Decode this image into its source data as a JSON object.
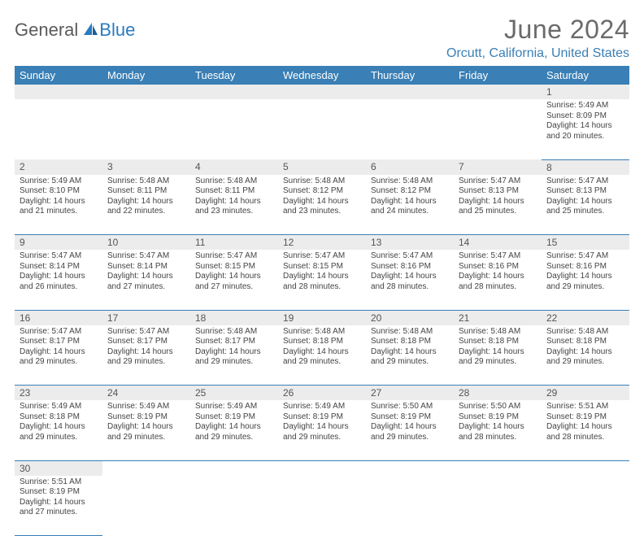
{
  "logo": {
    "text1": "General",
    "text2": "Blue"
  },
  "title": "June 2024",
  "location": "Orcutt, California, United States",
  "colors": {
    "header_bg": "#3a7fb5",
    "header_fg": "#ffffff",
    "daynum_bg": "#ececec",
    "accent": "#2b7bbf",
    "text": "#444444"
  },
  "days_of_week": [
    "Sunday",
    "Monday",
    "Tuesday",
    "Wednesday",
    "Thursday",
    "Friday",
    "Saturday"
  ],
  "weeks": [
    [
      null,
      null,
      null,
      null,
      null,
      null,
      {
        "n": "1",
        "sr": "Sunrise: 5:49 AM",
        "ss": "Sunset: 8:09 PM",
        "d1": "Daylight: 14 hours",
        "d2": "and 20 minutes."
      }
    ],
    [
      {
        "n": "2",
        "sr": "Sunrise: 5:49 AM",
        "ss": "Sunset: 8:10 PM",
        "d1": "Daylight: 14 hours",
        "d2": "and 21 minutes."
      },
      {
        "n": "3",
        "sr": "Sunrise: 5:48 AM",
        "ss": "Sunset: 8:11 PM",
        "d1": "Daylight: 14 hours",
        "d2": "and 22 minutes."
      },
      {
        "n": "4",
        "sr": "Sunrise: 5:48 AM",
        "ss": "Sunset: 8:11 PM",
        "d1": "Daylight: 14 hours",
        "d2": "and 23 minutes."
      },
      {
        "n": "5",
        "sr": "Sunrise: 5:48 AM",
        "ss": "Sunset: 8:12 PM",
        "d1": "Daylight: 14 hours",
        "d2": "and 23 minutes."
      },
      {
        "n": "6",
        "sr": "Sunrise: 5:48 AM",
        "ss": "Sunset: 8:12 PM",
        "d1": "Daylight: 14 hours",
        "d2": "and 24 minutes."
      },
      {
        "n": "7",
        "sr": "Sunrise: 5:47 AM",
        "ss": "Sunset: 8:13 PM",
        "d1": "Daylight: 14 hours",
        "d2": "and 25 minutes."
      },
      {
        "n": "8",
        "sr": "Sunrise: 5:47 AM",
        "ss": "Sunset: 8:13 PM",
        "d1": "Daylight: 14 hours",
        "d2": "and 25 minutes."
      }
    ],
    [
      {
        "n": "9",
        "sr": "Sunrise: 5:47 AM",
        "ss": "Sunset: 8:14 PM",
        "d1": "Daylight: 14 hours",
        "d2": "and 26 minutes."
      },
      {
        "n": "10",
        "sr": "Sunrise: 5:47 AM",
        "ss": "Sunset: 8:14 PM",
        "d1": "Daylight: 14 hours",
        "d2": "and 27 minutes."
      },
      {
        "n": "11",
        "sr": "Sunrise: 5:47 AM",
        "ss": "Sunset: 8:15 PM",
        "d1": "Daylight: 14 hours",
        "d2": "and 27 minutes."
      },
      {
        "n": "12",
        "sr": "Sunrise: 5:47 AM",
        "ss": "Sunset: 8:15 PM",
        "d1": "Daylight: 14 hours",
        "d2": "and 28 minutes."
      },
      {
        "n": "13",
        "sr": "Sunrise: 5:47 AM",
        "ss": "Sunset: 8:16 PM",
        "d1": "Daylight: 14 hours",
        "d2": "and 28 minutes."
      },
      {
        "n": "14",
        "sr": "Sunrise: 5:47 AM",
        "ss": "Sunset: 8:16 PM",
        "d1": "Daylight: 14 hours",
        "d2": "and 28 minutes."
      },
      {
        "n": "15",
        "sr": "Sunrise: 5:47 AM",
        "ss": "Sunset: 8:16 PM",
        "d1": "Daylight: 14 hours",
        "d2": "and 29 minutes."
      }
    ],
    [
      {
        "n": "16",
        "sr": "Sunrise: 5:47 AM",
        "ss": "Sunset: 8:17 PM",
        "d1": "Daylight: 14 hours",
        "d2": "and 29 minutes."
      },
      {
        "n": "17",
        "sr": "Sunrise: 5:47 AM",
        "ss": "Sunset: 8:17 PM",
        "d1": "Daylight: 14 hours",
        "d2": "and 29 minutes."
      },
      {
        "n": "18",
        "sr": "Sunrise: 5:48 AM",
        "ss": "Sunset: 8:17 PM",
        "d1": "Daylight: 14 hours",
        "d2": "and 29 minutes."
      },
      {
        "n": "19",
        "sr": "Sunrise: 5:48 AM",
        "ss": "Sunset: 8:18 PM",
        "d1": "Daylight: 14 hours",
        "d2": "and 29 minutes."
      },
      {
        "n": "20",
        "sr": "Sunrise: 5:48 AM",
        "ss": "Sunset: 8:18 PM",
        "d1": "Daylight: 14 hours",
        "d2": "and 29 minutes."
      },
      {
        "n": "21",
        "sr": "Sunrise: 5:48 AM",
        "ss": "Sunset: 8:18 PM",
        "d1": "Daylight: 14 hours",
        "d2": "and 29 minutes."
      },
      {
        "n": "22",
        "sr": "Sunrise: 5:48 AM",
        "ss": "Sunset: 8:18 PM",
        "d1": "Daylight: 14 hours",
        "d2": "and 29 minutes."
      }
    ],
    [
      {
        "n": "23",
        "sr": "Sunrise: 5:49 AM",
        "ss": "Sunset: 8:18 PM",
        "d1": "Daylight: 14 hours",
        "d2": "and 29 minutes."
      },
      {
        "n": "24",
        "sr": "Sunrise: 5:49 AM",
        "ss": "Sunset: 8:19 PM",
        "d1": "Daylight: 14 hours",
        "d2": "and 29 minutes."
      },
      {
        "n": "25",
        "sr": "Sunrise: 5:49 AM",
        "ss": "Sunset: 8:19 PM",
        "d1": "Daylight: 14 hours",
        "d2": "and 29 minutes."
      },
      {
        "n": "26",
        "sr": "Sunrise: 5:49 AM",
        "ss": "Sunset: 8:19 PM",
        "d1": "Daylight: 14 hours",
        "d2": "and 29 minutes."
      },
      {
        "n": "27",
        "sr": "Sunrise: 5:50 AM",
        "ss": "Sunset: 8:19 PM",
        "d1": "Daylight: 14 hours",
        "d2": "and 29 minutes."
      },
      {
        "n": "28",
        "sr": "Sunrise: 5:50 AM",
        "ss": "Sunset: 8:19 PM",
        "d1": "Daylight: 14 hours",
        "d2": "and 28 minutes."
      },
      {
        "n": "29",
        "sr": "Sunrise: 5:51 AM",
        "ss": "Sunset: 8:19 PM",
        "d1": "Daylight: 14 hours",
        "d2": "and 28 minutes."
      }
    ],
    [
      {
        "n": "30",
        "sr": "Sunrise: 5:51 AM",
        "ss": "Sunset: 8:19 PM",
        "d1": "Daylight: 14 hours",
        "d2": "and 27 minutes."
      },
      null,
      null,
      null,
      null,
      null,
      null
    ]
  ]
}
